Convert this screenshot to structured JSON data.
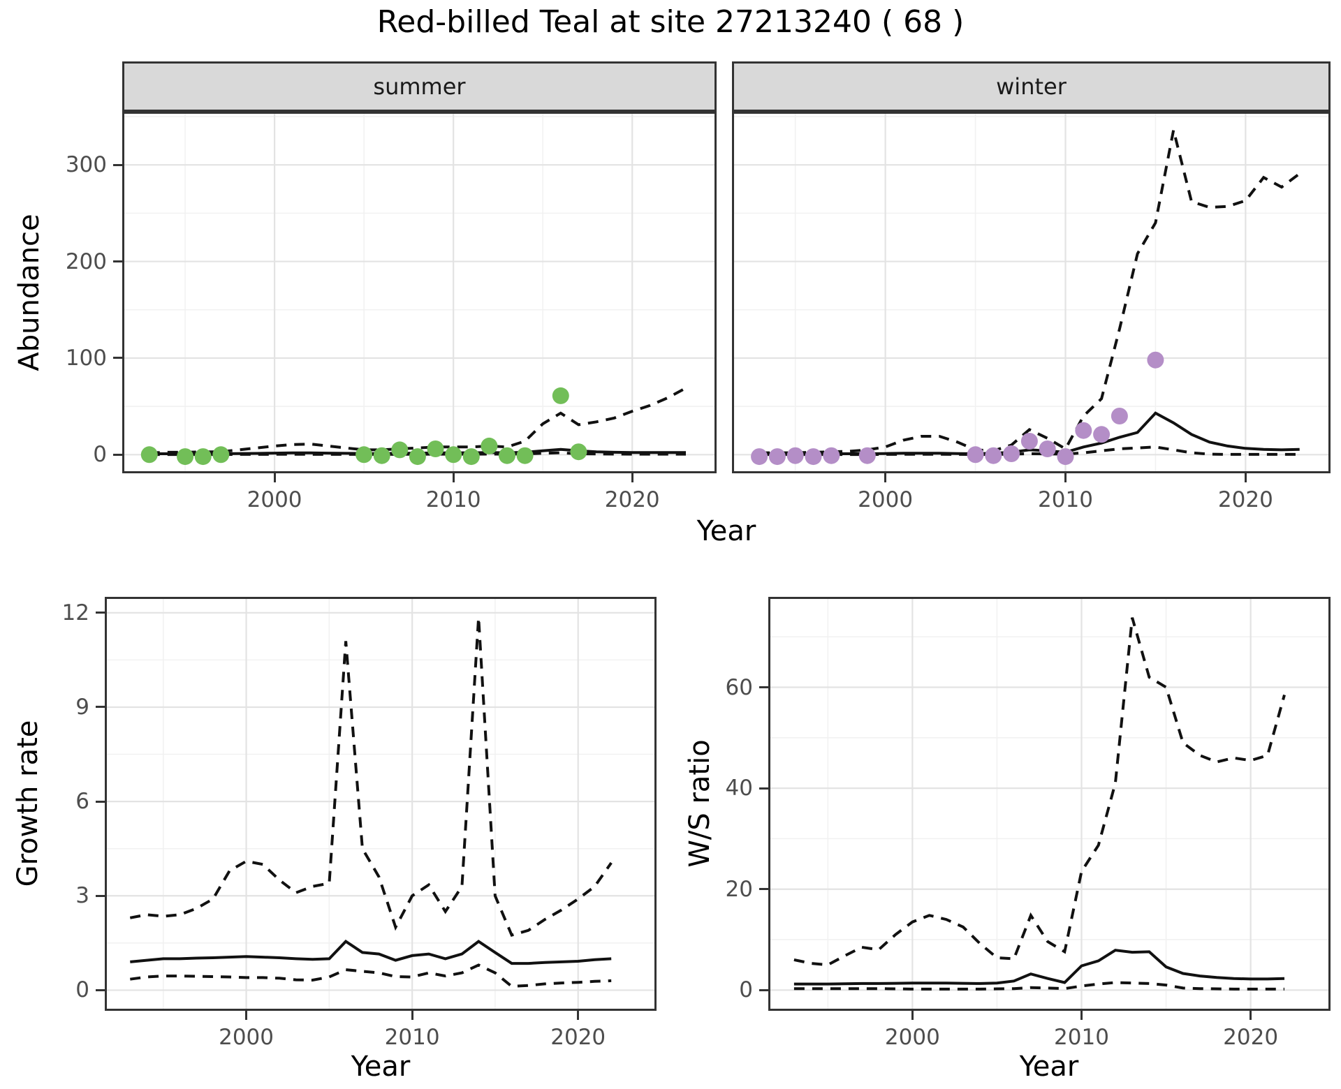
{
  "title": "Red-billed Teal at site 27213240 ( 68 )",
  "facets": {
    "summer": "summer",
    "winter": "winter"
  },
  "axis_titles": {
    "abundance": "Abundance",
    "year_top": "Year",
    "growth": "Growth rate",
    "ws": "W/S ratio",
    "year_growth": "Year",
    "year_ws": "Year"
  },
  "colors": {
    "line": "#111111",
    "summer_point": "#72BE58",
    "winter_point": "#B48EC7",
    "grid_major": "#E3E3E3",
    "grid_minor": "#F1F1F1",
    "panel_border": "#333333",
    "strip_bg": "#D9D9D9",
    "tick_label": "#4D4D4D"
  },
  "chart_data": [
    {
      "key": "summer",
      "type": "line",
      "title": "summer abundance (observed counts, model fit and 95% CI)",
      "xlabel": "Year",
      "ylabel": "Abundance",
      "x_domain": [
        1991.6,
        2024.6
      ],
      "y_domain": [
        -17.1,
        352.9
      ],
      "x_ticks": [
        2000,
        2010,
        2020
      ],
      "x_minor": [
        1995,
        2005,
        2015
      ],
      "y_ticks": [
        0,
        100,
        200,
        300
      ],
      "y_minor": [
        50,
        150,
        250,
        350
      ],
      "x": [
        1993,
        1994,
        1995,
        1996,
        1997,
        1998,
        1999,
        2000,
        2001,
        2002,
        2003,
        2004,
        2005,
        2006,
        2007,
        2008,
        2009,
        2010,
        2011,
        2012,
        2013,
        2014,
        2015,
        2016,
        2017,
        2018,
        2019,
        2020,
        2021,
        2022,
        2023
      ],
      "series": [
        {
          "name": "fit_median",
          "style": "solid",
          "values": [
            1,
            1,
            1,
            1,
            1,
            1.1,
            1.3,
            1.6,
            1.8,
            1.8,
            1.6,
            1.4,
            1.2,
            1.2,
            1.5,
            1.5,
            1.8,
            2,
            2,
            2.3,
            2,
            2.5,
            4,
            5.5,
            4,
            3,
            2.5,
            2.3,
            2.2,
            2.2,
            2.2
          ]
        },
        {
          "name": "upper_ci",
          "style": "dashed",
          "values": [
            2,
            2.5,
            2.5,
            3,
            3,
            5,
            7,
            9,
            10.5,
            11,
            9,
            7,
            5,
            5,
            6,
            7,
            8,
            8,
            8,
            9,
            8,
            14,
            32,
            43,
            31,
            34,
            38,
            45,
            51,
            59,
            69
          ]
        },
        {
          "name": "lower_ci",
          "style": "dashed",
          "values": [
            0.2,
            0.2,
            0.2,
            0.2,
            0.2,
            0.3,
            0.3,
            0.4,
            0.4,
            0.4,
            0.3,
            0.3,
            0.3,
            0.3,
            0.4,
            0.4,
            0.5,
            0.5,
            0.5,
            0.6,
            0.5,
            0.8,
            1.5,
            2,
            1,
            0.8,
            0.6,
            0.5,
            0.5,
            0.5,
            0.5
          ]
        }
      ],
      "points": {
        "name": "observed_counts_summer",
        "color_key": "summer_point",
        "x": [
          1993,
          1995,
          1996,
          1997,
          2005,
          2006,
          2007,
          2008,
          2009,
          2010,
          2011,
          2012,
          2013,
          2014,
          2016,
          2017
        ],
        "y": [
          0,
          -2,
          -2,
          0,
          0,
          -1,
          5,
          -2,
          6,
          0,
          -2,
          9,
          -1,
          -1,
          61,
          3
        ]
      }
    },
    {
      "key": "winter",
      "type": "line",
      "title": "winter abundance (observed counts, model fit and 95% CI)",
      "xlabel": "Year",
      "ylabel": "Abundance",
      "x_domain": [
        1991.6,
        2024.6
      ],
      "y_domain": [
        -17.1,
        352.9
      ],
      "x_ticks": [
        2000,
        2010,
        2020
      ],
      "x_minor": [
        1995,
        2005,
        2015
      ],
      "y_ticks": [
        0,
        100,
        200,
        300
      ],
      "y_minor": [
        50,
        150,
        250,
        350
      ],
      "y_tick_labels_hidden": true,
      "x": [
        1993,
        1994,
        1995,
        1996,
        1997,
        1998,
        1999,
        2000,
        2001,
        2002,
        2003,
        2004,
        2005,
        2006,
        2007,
        2008,
        2009,
        2010,
        2011,
        2012,
        2013,
        2014,
        2015,
        2016,
        2017,
        2018,
        2019,
        2020,
        2021,
        2022,
        2023
      ],
      "series": [
        {
          "name": "fit_median",
          "style": "solid",
          "values": [
            1,
            1,
            1,
            1,
            1,
            1,
            1,
            1.2,
            1.5,
            1.5,
            1.5,
            1.2,
            1,
            1.5,
            2.5,
            5,
            4,
            2.5,
            8,
            12,
            18,
            23,
            43,
            33,
            21,
            13,
            9,
            6.5,
            5.5,
            5,
            5.5
          ]
        },
        {
          "name": "upper_ci",
          "style": "dashed",
          "values": [
            2,
            2,
            2,
            2.5,
            3,
            3.5,
            5,
            8,
            15,
            19,
            19,
            13,
            5,
            4,
            10,
            26,
            17,
            6,
            40,
            58,
            130,
            208,
            240,
            336,
            262,
            256,
            257,
            263,
            287,
            277,
            291
          ]
        },
        {
          "name": "lower_ci",
          "style": "dashed",
          "values": [
            0.2,
            0.2,
            0.2,
            0.2,
            0.2,
            0.2,
            0.2,
            0.3,
            0.4,
            0.4,
            0.4,
            0.3,
            0.2,
            0.3,
            0.5,
            1,
            0.8,
            0.5,
            2,
            4,
            6,
            7,
            8,
            5,
            2,
            0.5,
            0.3,
            0.3,
            0.3,
            0.3,
            0.3
          ]
        }
      ],
      "points": {
        "name": "observed_counts_winter",
        "color_key": "winter_point",
        "x": [
          1993,
          1994,
          1995,
          1996,
          1997,
          1999,
          2005,
          2006,
          2007,
          2008,
          2009,
          2010,
          2011,
          2012,
          2013,
          2015
        ],
        "y": [
          -2,
          -2,
          -1,
          -2,
          -1,
          -1,
          0,
          -1,
          1,
          14,
          6,
          -2,
          25,
          21,
          40,
          98
        ]
      }
    },
    {
      "key": "growth",
      "type": "line",
      "title": "Growth rate (median and 95% CI)",
      "xlabel": "Year",
      "ylabel": "Growth rate",
      "x_domain": [
        1991.6,
        2024.6
      ],
      "y_domain": [
        -0.59,
        12.44
      ],
      "x_ticks": [
        2000,
        2010,
        2020
      ],
      "x_minor": [
        1995,
        2005,
        2015
      ],
      "y_ticks": [
        0,
        3,
        6,
        9,
        12
      ],
      "y_minor": [
        1.5,
        4.5,
        7.5,
        10.5
      ],
      "x": [
        1993,
        1994,
        1995,
        1996,
        1997,
        1998,
        1999,
        2000,
        2001,
        2002,
        2003,
        2004,
        2005,
        2006,
        2007,
        2008,
        2009,
        2010,
        2011,
        2012,
        2013,
        2014,
        2015,
        2016,
        2017,
        2018,
        2019,
        2020,
        2021,
        2022
      ],
      "series": [
        {
          "name": "fit_median",
          "style": "solid",
          "values": [
            0.9,
            0.95,
            1,
            1,
            1.02,
            1.03,
            1.05,
            1.07,
            1.05,
            1.03,
            1,
            0.98,
            1,
            1.55,
            1.2,
            1.15,
            0.95,
            1.1,
            1.15,
            1,
            1.15,
            1.55,
            1.2,
            0.85,
            0.85,
            0.88,
            0.9,
            0.92,
            0.97,
            1
          ]
        },
        {
          "name": "upper_ci",
          "style": "dashed",
          "values": [
            2.3,
            2.4,
            2.35,
            2.4,
            2.6,
            2.9,
            3.8,
            4.1,
            4,
            3.5,
            3.1,
            3.3,
            3.4,
            11.1,
            4.5,
            3.6,
            2,
            3,
            3.35,
            2.5,
            3.3,
            11.85,
            3,
            1.75,
            1.9,
            2.25,
            2.55,
            2.9,
            3.3,
            4.05
          ]
        },
        {
          "name": "lower_ci",
          "style": "dashed",
          "values": [
            0.35,
            0.42,
            0.45,
            0.45,
            0.44,
            0.43,
            0.42,
            0.4,
            0.4,
            0.38,
            0.33,
            0.32,
            0.42,
            0.65,
            0.6,
            0.55,
            0.43,
            0.42,
            0.55,
            0.45,
            0.55,
            0.8,
            0.55,
            0.12,
            0.15,
            0.2,
            0.23,
            0.25,
            0.28,
            0.3
          ]
        }
      ],
      "points": null
    },
    {
      "key": "ws",
      "type": "line",
      "title": "Winter/Summer ratio (median and 95% CI)",
      "xlabel": "Year",
      "ylabel": "W/S ratio",
      "x_domain": [
        1991.6,
        2024.6
      ],
      "y_domain": [
        -3.69,
        77.5
      ],
      "x_ticks": [
        2000,
        2010,
        2020
      ],
      "x_minor": [
        1995,
        2005,
        2015
      ],
      "y_ticks": [
        0,
        20,
        40,
        60
      ],
      "y_minor": [
        10,
        30,
        50,
        70
      ],
      "x": [
        1993,
        1994,
        1995,
        1996,
        1997,
        1998,
        1999,
        2000,
        2001,
        2002,
        2003,
        2004,
        2005,
        2006,
        2007,
        2008,
        2009,
        2010,
        2011,
        2012,
        2013,
        2014,
        2015,
        2016,
        2017,
        2018,
        2019,
        2020,
        2021,
        2022
      ],
      "series": [
        {
          "name": "fit_median",
          "style": "solid",
          "values": [
            1.2,
            1.2,
            1.2,
            1.25,
            1.3,
            1.3,
            1.35,
            1.4,
            1.4,
            1.4,
            1.35,
            1.3,
            1.4,
            1.8,
            3.2,
            2.3,
            1.5,
            4.8,
            5.8,
            7.9,
            7.5,
            7.6,
            4.6,
            3.3,
            2.8,
            2.5,
            2.3,
            2.2,
            2.2,
            2.3
          ]
        },
        {
          "name": "upper_ci",
          "style": "dashed",
          "values": [
            6,
            5.3,
            5,
            6.8,
            8.5,
            8,
            11,
            13.5,
            14.8,
            14,
            12.5,
            9.2,
            6.4,
            6.2,
            14.8,
            9.6,
            7.6,
            23.5,
            28.7,
            41,
            73.8,
            62,
            60,
            49,
            46.5,
            45.2,
            46,
            45.5,
            46.5,
            58.5
          ]
        },
        {
          "name": "lower_ci",
          "style": "dashed",
          "values": [
            0.3,
            0.3,
            0.3,
            0.3,
            0.3,
            0.3,
            0.25,
            0.2,
            0.2,
            0.2,
            0.2,
            0.2,
            0.25,
            0.3,
            0.5,
            0.4,
            0.3,
            0.8,
            1.2,
            1.5,
            1.4,
            1.3,
            1,
            0.4,
            0.3,
            0.25,
            0.2,
            0.2,
            0.2,
            0.2
          ]
        }
      ],
      "points": null
    }
  ]
}
